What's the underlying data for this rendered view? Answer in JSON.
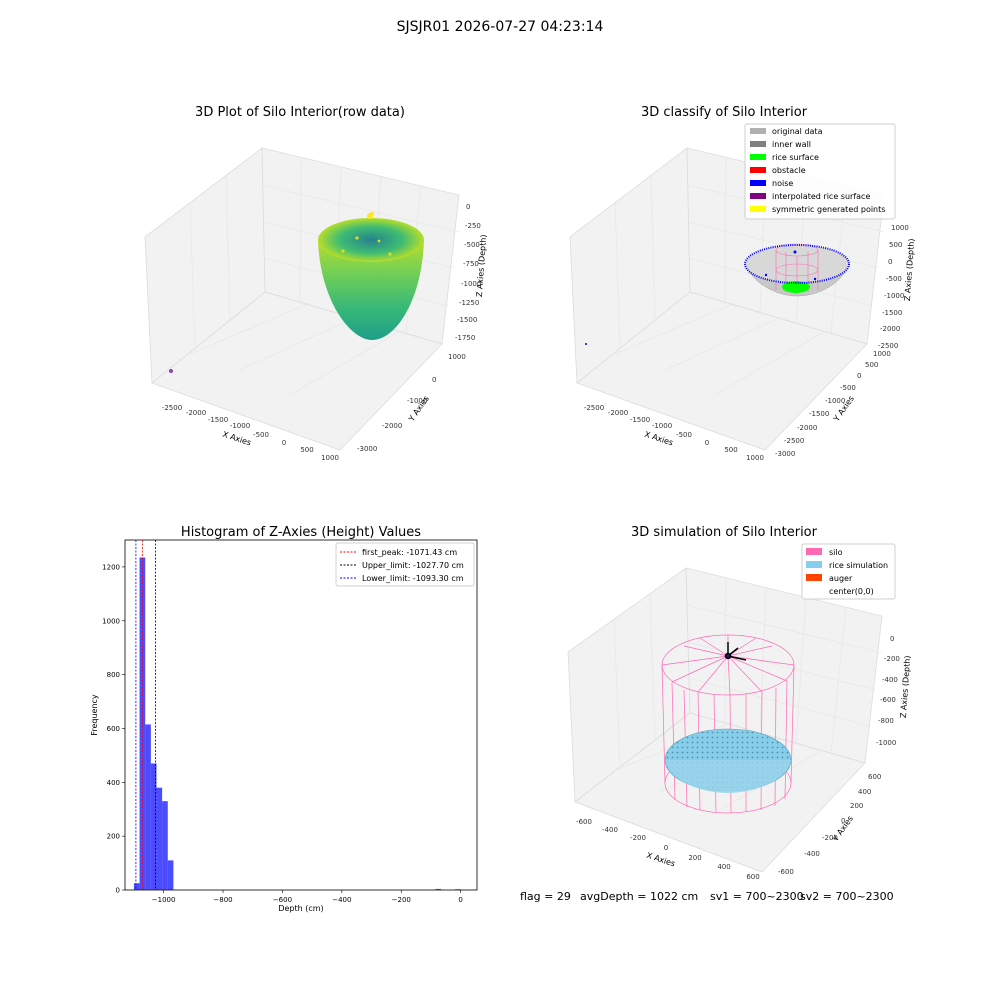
{
  "figure": {
    "suptitle": "SJSJR01 2026-07-27 04:23:14",
    "footer": {
      "flag": "flag = 29",
      "avg_depth": "avgDepth = 1022 cm",
      "sv1": "sv1 = 700~2300",
      "sv2": "sv2 = 700~2300"
    }
  },
  "chart_data": [
    {
      "type": "scatter3d",
      "title": "3D Plot of Silo Interior(row data)",
      "xlabel": "X Axies",
      "ylabel": "Y Axies",
      "zlabel": "Z Axies (Depth)",
      "x_ticks": [
        "-2500",
        "-2000",
        "-1500",
        "-1000",
        "-500",
        "0",
        "500",
        "1000"
      ],
      "y_ticks": [
        "-3000",
        "-2000",
        "-1000",
        "0",
        "1000"
      ],
      "z_ticks": [
        "0",
        "-250",
        "-500",
        "-750",
        "-1000",
        "-1250",
        "-1500",
        "-1750"
      ],
      "colormap": "viridis"
    },
    {
      "type": "scatter3d",
      "title": "3D classify of Silo Interior",
      "xlabel": "X Axies",
      "ylabel": "Y Axies",
      "zlabel": "Z Axies (Depth)",
      "x_ticks": [
        "-2500",
        "-2000",
        "-1500",
        "-1000",
        "-500",
        "0",
        "500",
        "1000"
      ],
      "y_ticks": [
        "-3000",
        "-2500",
        "-2000",
        "-1500",
        "-1000",
        "-500",
        "0",
        "500",
        "1000"
      ],
      "z_ticks": [
        "1000",
        "500",
        "0",
        "-500",
        "-1000",
        "-1500",
        "-2000",
        "-2500"
      ],
      "legend_position": "top-right",
      "legend": [
        {
          "label": "original data",
          "color": "#b0b0b0"
        },
        {
          "label": "inner wall",
          "color": "#808080"
        },
        {
          "label": "rice surface",
          "color": "#00ff00"
        },
        {
          "label": "obstacle",
          "color": "#ff0000"
        },
        {
          "label": "noise",
          "color": "#0000ff"
        },
        {
          "label": "interpolated rice surface",
          "color": "#800080"
        },
        {
          "label": "symmetric generated points",
          "color": "#ffff00"
        }
      ]
    },
    {
      "type": "bar",
      "title": "Histogram of Z-Axies (Height) Values",
      "xlabel": "Depth (cm)",
      "ylabel": "Frequency",
      "xlim": [
        -1130,
        55
      ],
      "ylim": [
        0,
        1300
      ],
      "x_ticks": [
        -1000,
        -800,
        -600,
        -400,
        -200,
        0
      ],
      "y_ticks": [
        0,
        200,
        400,
        600,
        800,
        1000,
        1200
      ],
      "bar_color": "#0000ff",
      "bins": [
        {
          "x0": -1100,
          "x1": -1081,
          "count": 25
        },
        {
          "x0": -1081,
          "x1": -1062,
          "count": 1235
        },
        {
          "x0": -1062,
          "x1": -1043,
          "count": 615
        },
        {
          "x0": -1043,
          "x1": -1024,
          "count": 470
        },
        {
          "x0": -1024,
          "x1": -1005,
          "count": 380
        },
        {
          "x0": -1005,
          "x1": -986,
          "count": 330
        },
        {
          "x0": -986,
          "x1": -967,
          "count": 110
        },
        {
          "x0": -85,
          "x1": -66,
          "count": 4
        },
        {
          "x0": -19,
          "x1": 0,
          "count": 3
        }
      ],
      "lines": [
        {
          "label": "first_peak: -1071.43 cm",
          "x": -1071.43,
          "color": "#ff0000"
        },
        {
          "label": "Upper_limit: -1027.70 cm",
          "x": -1027.7,
          "color": "#000000"
        },
        {
          "label": "Lower_limit: -1093.30 cm",
          "x": -1093.3,
          "color": "#0000ff"
        }
      ],
      "legend_position": "top-right"
    },
    {
      "type": "scatter3d",
      "title": "3D simulation of Silo Interior",
      "xlabel": "X Axies",
      "ylabel": "Y Axies",
      "zlabel": "Z Axies (Depth)",
      "x_ticks": [
        "-600",
        "-400",
        "-200",
        "0",
        "200",
        "400",
        "600"
      ],
      "y_ticks": [
        "-600",
        "-400",
        "-200",
        "0",
        "200",
        "400",
        "600"
      ],
      "z_ticks": [
        "0",
        "-200",
        "-400",
        "-600",
        "-800",
        "-1000"
      ],
      "legend_position": "top-right",
      "legend": [
        {
          "label": "silo",
          "color": "#ff69b4"
        },
        {
          "label": "rice simulation",
          "color": "#87ceeb"
        },
        {
          "label": "auger",
          "color": "#ff4500"
        },
        {
          "label": "center(0,0)",
          "color": "#ffffff"
        }
      ]
    }
  ]
}
